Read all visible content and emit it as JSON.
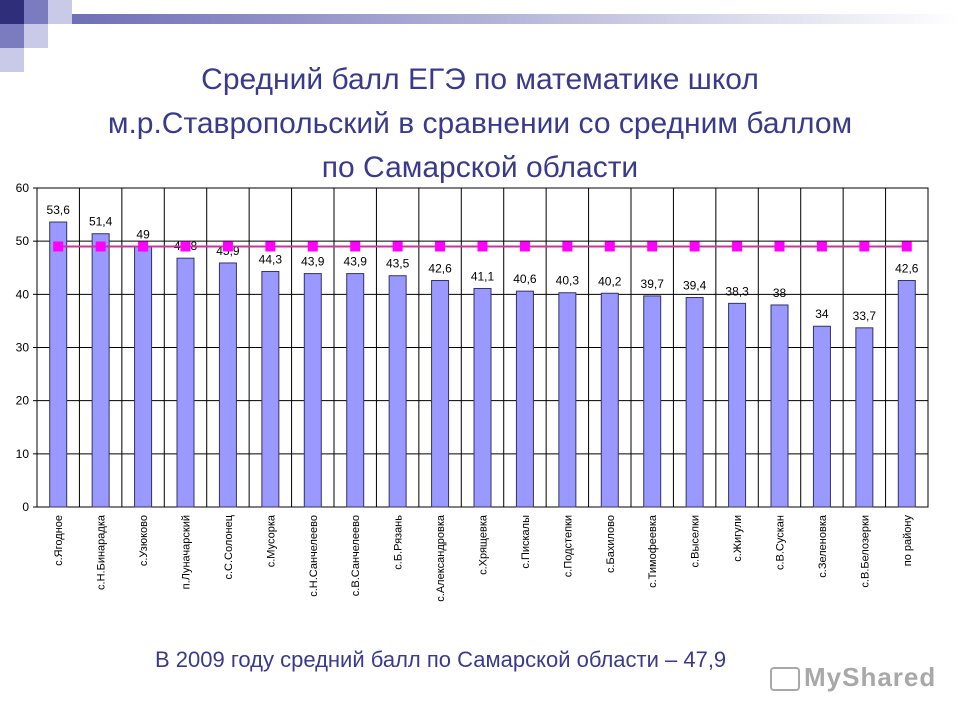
{
  "header": {
    "title": "Средний балл ЕГЭ по математике школ\nм.р.Ставропольский в сравнении со средним баллом\nпо Самарской области"
  },
  "footer": {
    "note": "В 2009 году средний балл по Самарской области – 47,9"
  },
  "watermark": {
    "text": "MyShared"
  },
  "colors": {
    "title": "#3a3a8c",
    "bar_fill": "#9999ff",
    "bar_stroke": "#333366",
    "line": "#cc3399",
    "marker": "#ff00ff",
    "grid": "#000000"
  },
  "chart_data": {
    "type": "bar",
    "categories": [
      "с.Ягодное",
      "с.Н.Бинарадка",
      "с.Узюково",
      "п.Луначарский",
      "с.С.Солонец",
      "с.Мусорка",
      "с.Н.Санчелеево",
      "с.В.Санчелеево",
      "с.Б.Рязань",
      "с.Александровка",
      "с.Хрящевка",
      "с.Пискалы",
      "с.Подстепки",
      "с.Бахилово",
      "с.Тимофеевка",
      "с.Выселки",
      "с.Жигули",
      "с.В.Сускан",
      "с.Зеленовка",
      "с.В.Белозерки",
      "по району"
    ],
    "values": [
      53.6,
      51.4,
      49,
      46.8,
      45.9,
      44.3,
      43.9,
      43.9,
      43.5,
      42.6,
      41.1,
      40.6,
      40.3,
      40.2,
      39.7,
      39.4,
      38.3,
      38,
      34,
      33.7,
      42.6
    ],
    "labels": [
      "53,6",
      "51,4",
      "49",
      "46,8",
      "45,9",
      "44,3",
      "43,9",
      "43,9",
      "43,5",
      "42,6",
      "41,1",
      "40,6",
      "40,3",
      "40,2",
      "39,7",
      "39,4",
      "38,3",
      "38",
      "34",
      "33,7",
      "42,6"
    ],
    "reference_value": 49,
    "yticks": [
      "0",
      "10",
      "20",
      "30",
      "40",
      "50",
      "60"
    ],
    "ylim": [
      0,
      60
    ],
    "grid": true,
    "legend": "none"
  }
}
